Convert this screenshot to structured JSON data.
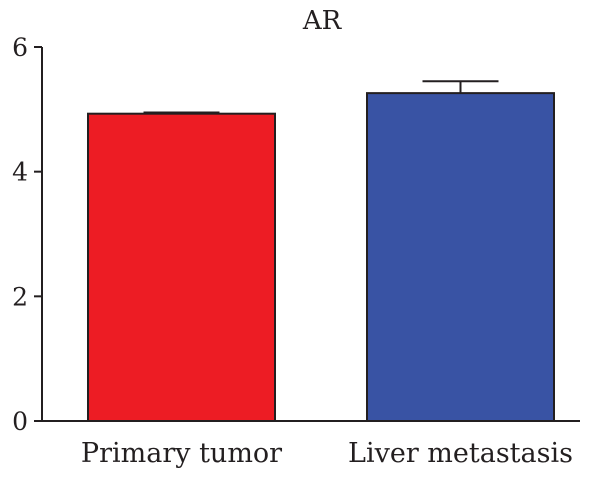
{
  "chart_data": {
    "type": "bar",
    "title": "AR",
    "xlabel": "",
    "ylabel": "",
    "categories": [
      "Primary tumor",
      "Liver metastasis"
    ],
    "values": [
      4.93,
      5.26
    ],
    "error": [
      0.02,
      0.19
    ],
    "colors": [
      "#ed1c24",
      "#3953a4"
    ],
    "ylim": [
      0,
      6
    ],
    "yticks": [
      "0",
      "2",
      "4",
      "6"
    ],
    "grid": false,
    "legend": "none"
  }
}
